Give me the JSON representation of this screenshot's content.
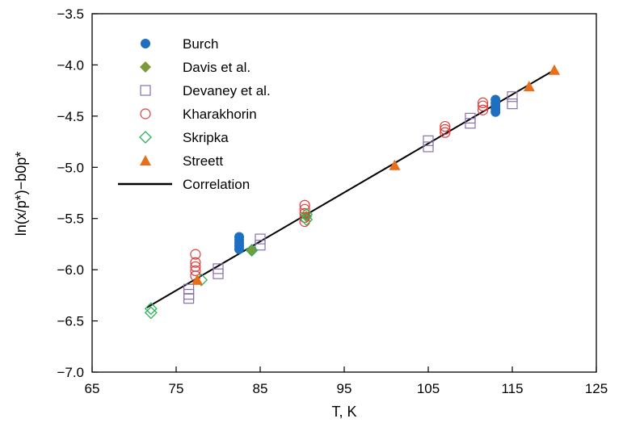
{
  "chart_data": {
    "type": "scatter",
    "xlabel": "T, K",
    "ylabel": "ln(x/p*)−b0p*",
    "xlim": [
      65,
      125
    ],
    "ylim": [
      -7.0,
      -3.5
    ],
    "xticks": [
      65,
      75,
      85,
      95,
      105,
      115,
      125
    ],
    "yticks": [
      -3.5,
      -4.0,
      -4.5,
      -5.0,
      -5.5,
      -6.0,
      -6.5,
      -7.0
    ],
    "xtick_labels": [
      "65",
      "75",
      "85",
      "95",
      "105",
      "115",
      "125"
    ],
    "ytick_labels": [
      "−3.5",
      "−4.0",
      "−4.5",
      "−5.0",
      "−5.5",
      "−6.0",
      "−6.5",
      "−7.0"
    ],
    "grid": false,
    "legend_position": "top-left",
    "series": [
      {
        "name": "Burch",
        "marker": "filled-circle",
        "color": "#1f6fc1",
        "points": [
          [
            82.5,
            -5.68
          ],
          [
            82.5,
            -5.71
          ],
          [
            82.5,
            -5.74
          ],
          [
            82.5,
            -5.77
          ],
          [
            82.5,
            -5.8
          ],
          [
            113,
            -4.34
          ],
          [
            113,
            -4.37
          ],
          [
            113,
            -4.4
          ],
          [
            113,
            -4.43
          ],
          [
            113,
            -4.46
          ]
        ]
      },
      {
        "name": "Davis et al.",
        "marker": "filled-diamond",
        "color": "#7c9a3a",
        "points": [
          [
            84,
            -5.81
          ],
          [
            90.5,
            -5.48
          ]
        ]
      },
      {
        "name": "Devaney et al.",
        "marker": "open-square",
        "color": "#8a6fb0",
        "points": [
          [
            76.5,
            -6.19
          ],
          [
            76.5,
            -6.24
          ],
          [
            76.5,
            -6.28
          ],
          [
            80,
            -5.99
          ],
          [
            80,
            -6.04
          ],
          [
            85,
            -5.7
          ],
          [
            85,
            -5.76
          ],
          [
            105,
            -4.74
          ],
          [
            105,
            -4.8
          ],
          [
            110,
            -4.52
          ],
          [
            110,
            -4.57
          ],
          [
            115,
            -4.31
          ],
          [
            115,
            -4.38
          ]
        ]
      },
      {
        "name": "Kharakhorin",
        "marker": "open-circle",
        "color": "#e23c3c",
        "points": [
          [
            77.3,
            -5.85
          ],
          [
            77.3,
            -5.93
          ],
          [
            77.3,
            -5.97
          ],
          [
            77.3,
            -6.01
          ],
          [
            77.3,
            -6.06
          ],
          [
            90.3,
            -5.37
          ],
          [
            90.3,
            -5.41
          ],
          [
            90.3,
            -5.45
          ],
          [
            90.3,
            -5.49
          ],
          [
            90.3,
            -5.53
          ],
          [
            107,
            -4.6
          ],
          [
            107,
            -4.63
          ],
          [
            107,
            -4.66
          ],
          [
            111.5,
            -4.37
          ],
          [
            111.5,
            -4.4
          ],
          [
            111.5,
            -4.44
          ]
        ]
      },
      {
        "name": "Skripka",
        "marker": "open-diamond",
        "color": "#2db257",
        "points": [
          [
            72,
            -6.38
          ],
          [
            72,
            -6.42
          ],
          [
            78,
            -6.1
          ],
          [
            84,
            -5.81
          ],
          [
            90.5,
            -5.46
          ],
          [
            90.5,
            -5.51
          ]
        ]
      },
      {
        "name": "Streett",
        "marker": "filled-triangle",
        "color": "#e86f1a",
        "points": [
          [
            77.5,
            -6.1
          ],
          [
            101,
            -4.98
          ],
          [
            117,
            -4.21
          ],
          [
            120,
            -4.05
          ]
        ]
      },
      {
        "name": "Correlation",
        "marker": "line",
        "color": "#000000",
        "points": [
          [
            71.5,
            -6.37
          ],
          [
            120,
            -4.05
          ]
        ]
      }
    ]
  }
}
